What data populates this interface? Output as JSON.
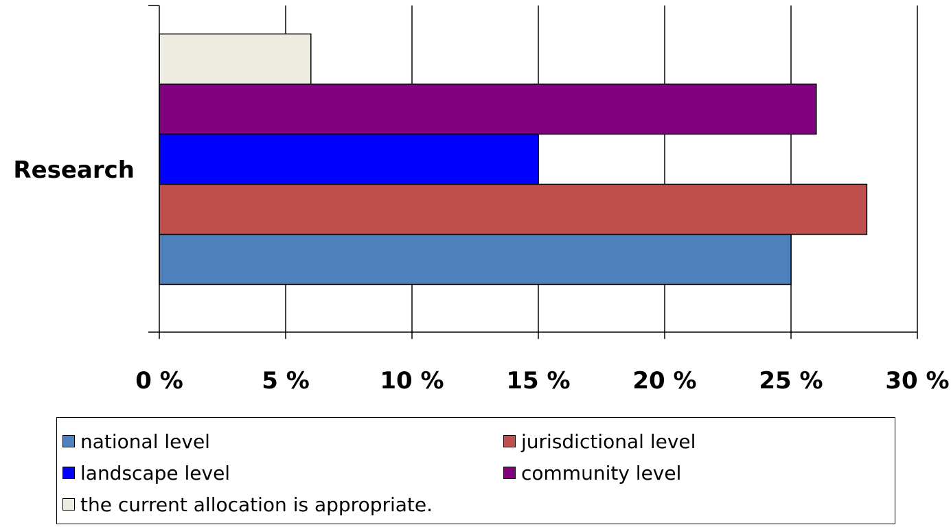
{
  "chart_data": {
    "type": "bar",
    "orientation": "horizontal",
    "categories": [
      "Research"
    ],
    "series": [
      {
        "name": "national level",
        "values": [
          25
        ],
        "color": "#4F81BD"
      },
      {
        "name": "jurisdictional level",
        "values": [
          28
        ],
        "color": "#C0504D"
      },
      {
        "name": "landscape level",
        "values": [
          15
        ],
        "color": "#0000FF"
      },
      {
        "name": "community level",
        "values": [
          26
        ],
        "color": "#800080"
      },
      {
        "name": "the current allocation is appropriate.",
        "values": [
          6
        ],
        "color": "#EEECE1"
      }
    ],
    "xlim": [
      0,
      30
    ],
    "xticks": [
      0,
      5,
      10,
      15,
      20,
      25,
      30
    ],
    "xtick_labels": [
      "0 %",
      "5 %",
      "10 %",
      "15 %",
      "20 %",
      "25 %",
      "30 %"
    ],
    "grid": "vertical",
    "legend_position": "bottom"
  }
}
